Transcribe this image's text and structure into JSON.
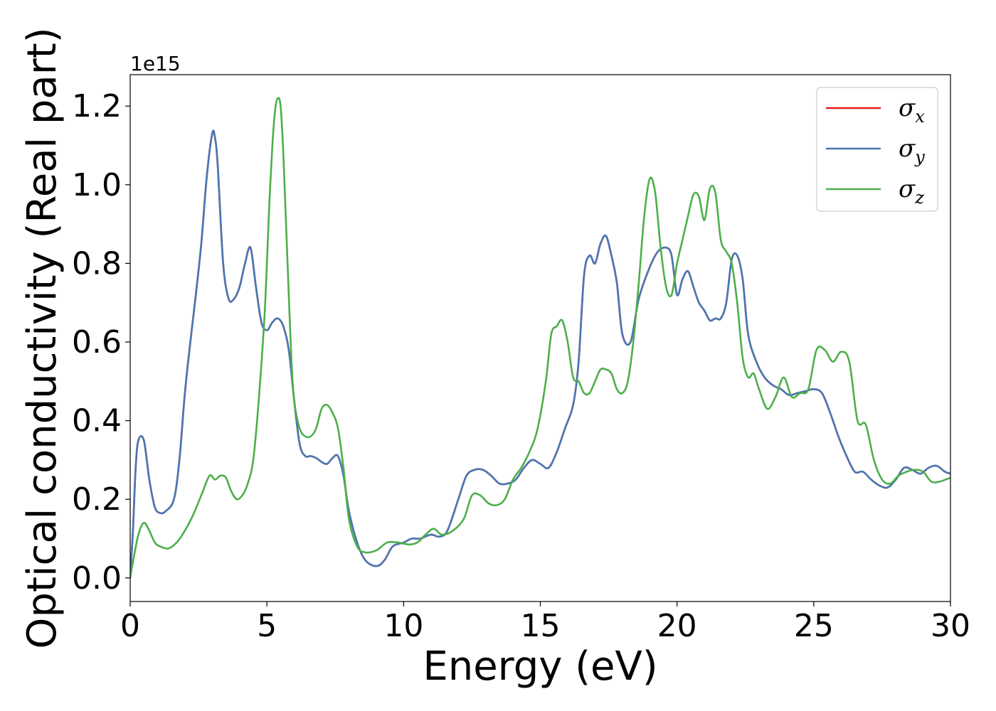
{
  "chart_data": {
    "type": "line",
    "title": "",
    "xlabel": "Energy (eV)",
    "ylabel": "Optical conductivity (Real part)",
    "y_offset_label": "1e15",
    "xlim": [
      0,
      30
    ],
    "ylim": [
      -0.06,
      1.28
    ],
    "y_scale_factor": 1000000000000000.0,
    "x_ticks": [
      0,
      5,
      10,
      15,
      20,
      25,
      30
    ],
    "x_tick_labels": [
      "0",
      "5",
      "10",
      "15",
      "20",
      "25",
      "30"
    ],
    "y_ticks": [
      0.0,
      0.2,
      0.4,
      0.6,
      0.8,
      1.0,
      1.2
    ],
    "y_tick_labels": [
      "0.0",
      "0.2",
      "0.4",
      "0.6",
      "0.8",
      "1.0",
      "1.2"
    ],
    "grid": false,
    "legend_position": "top-right",
    "series": [
      {
        "name": "σx",
        "legend_symbol": "σ",
        "legend_subscript": "x",
        "color": "#e41a1c",
        "x": [
          0,
          0.1,
          0.2,
          0.3,
          0.5,
          0.7,
          0.9,
          1.1,
          1.3,
          1.6,
          1.8,
          2.0,
          2.2,
          2.4,
          2.6,
          2.8,
          3.0,
          3.1,
          3.2,
          3.4,
          3.6,
          3.8,
          4.0,
          4.2,
          4.4,
          4.6,
          4.8,
          5.0,
          5.2,
          5.4,
          5.6,
          5.8,
          6.0,
          6.2,
          6.4,
          6.6,
          6.8,
          7.0,
          7.2,
          7.4,
          7.6,
          7.8,
          8.0,
          8.3,
          8.6,
          9.0,
          9.3,
          9.6,
          10.0,
          10.3,
          10.6,
          11.0,
          11.3,
          11.6,
          12.0,
          12.3,
          12.6,
          12.9,
          13.2,
          13.5,
          13.8,
          14.1,
          14.4,
          14.7,
          15.0,
          15.3,
          15.6,
          15.9,
          16.2,
          16.4,
          16.6,
          16.8,
          17.0,
          17.2,
          17.4,
          17.6,
          17.8,
          18.0,
          18.3,
          18.6,
          19.0,
          19.3,
          19.6,
          19.8,
          20.0,
          20.2,
          20.4,
          20.6,
          20.8,
          21.0,
          21.2,
          21.4,
          21.6,
          21.8,
          22.0,
          22.2,
          22.4,
          22.6,
          22.9,
          23.2,
          23.5,
          23.8,
          24.1,
          24.4,
          24.7,
          25.0,
          25.3,
          25.6,
          25.9,
          26.2,
          26.5,
          26.8,
          27.1,
          27.4,
          27.7,
          28.0,
          28.3,
          28.6,
          28.9,
          29.2,
          29.5,
          29.8,
          30.0
        ],
        "y": [
          0.0,
          0.12,
          0.28,
          0.35,
          0.35,
          0.25,
          0.18,
          0.165,
          0.17,
          0.2,
          0.3,
          0.47,
          0.6,
          0.72,
          0.85,
          1.02,
          1.13,
          1.12,
          1.05,
          0.8,
          0.71,
          0.71,
          0.74,
          0.8,
          0.84,
          0.74,
          0.65,
          0.63,
          0.65,
          0.66,
          0.64,
          0.58,
          0.45,
          0.34,
          0.31,
          0.31,
          0.305,
          0.295,
          0.29,
          0.305,
          0.31,
          0.26,
          0.17,
          0.09,
          0.045,
          0.03,
          0.045,
          0.08,
          0.09,
          0.1,
          0.1,
          0.11,
          0.105,
          0.12,
          0.2,
          0.26,
          0.275,
          0.275,
          0.26,
          0.24,
          0.24,
          0.25,
          0.28,
          0.3,
          0.29,
          0.28,
          0.32,
          0.38,
          0.44,
          0.55,
          0.77,
          0.82,
          0.8,
          0.85,
          0.87,
          0.82,
          0.75,
          0.62,
          0.6,
          0.71,
          0.79,
          0.83,
          0.84,
          0.82,
          0.72,
          0.76,
          0.78,
          0.74,
          0.7,
          0.68,
          0.655,
          0.66,
          0.66,
          0.7,
          0.81,
          0.82,
          0.76,
          0.62,
          0.55,
          0.51,
          0.49,
          0.48,
          0.465,
          0.47,
          0.475,
          0.48,
          0.47,
          0.42,
          0.36,
          0.31,
          0.27,
          0.27,
          0.25,
          0.235,
          0.23,
          0.25,
          0.28,
          0.275,
          0.265,
          0.28,
          0.285,
          0.27,
          0.265
        ]
      },
      {
        "name": "σy",
        "legend_symbol": "σ",
        "legend_subscript": "y",
        "color": "#4878b4",
        "x": [
          0,
          0.1,
          0.2,
          0.3,
          0.5,
          0.7,
          0.9,
          1.1,
          1.3,
          1.6,
          1.8,
          2.0,
          2.2,
          2.4,
          2.6,
          2.8,
          3.0,
          3.1,
          3.2,
          3.4,
          3.6,
          3.8,
          4.0,
          4.2,
          4.4,
          4.6,
          4.8,
          5.0,
          5.2,
          5.4,
          5.6,
          5.8,
          6.0,
          6.2,
          6.4,
          6.6,
          6.8,
          7.0,
          7.2,
          7.4,
          7.6,
          7.8,
          8.0,
          8.3,
          8.6,
          9.0,
          9.3,
          9.6,
          10.0,
          10.3,
          10.6,
          11.0,
          11.3,
          11.6,
          12.0,
          12.3,
          12.6,
          12.9,
          13.2,
          13.5,
          13.8,
          14.1,
          14.4,
          14.7,
          15.0,
          15.3,
          15.6,
          15.9,
          16.2,
          16.4,
          16.6,
          16.8,
          17.0,
          17.2,
          17.4,
          17.6,
          17.8,
          18.0,
          18.3,
          18.6,
          19.0,
          19.3,
          19.6,
          19.8,
          20.0,
          20.2,
          20.4,
          20.6,
          20.8,
          21.0,
          21.2,
          21.4,
          21.6,
          21.8,
          22.0,
          22.2,
          22.4,
          22.6,
          22.9,
          23.2,
          23.5,
          23.8,
          24.1,
          24.4,
          24.7,
          25.0,
          25.3,
          25.6,
          25.9,
          26.2,
          26.5,
          26.8,
          27.1,
          27.4,
          27.7,
          28.0,
          28.3,
          28.6,
          28.9,
          29.2,
          29.5,
          29.8,
          30.0
        ],
        "y": [
          0.0,
          0.12,
          0.28,
          0.35,
          0.35,
          0.25,
          0.18,
          0.165,
          0.17,
          0.2,
          0.3,
          0.47,
          0.6,
          0.72,
          0.85,
          1.02,
          1.13,
          1.12,
          1.05,
          0.8,
          0.71,
          0.71,
          0.74,
          0.8,
          0.84,
          0.74,
          0.65,
          0.63,
          0.65,
          0.66,
          0.64,
          0.58,
          0.45,
          0.34,
          0.31,
          0.31,
          0.305,
          0.295,
          0.29,
          0.305,
          0.31,
          0.26,
          0.17,
          0.09,
          0.045,
          0.03,
          0.045,
          0.08,
          0.09,
          0.1,
          0.1,
          0.11,
          0.105,
          0.12,
          0.2,
          0.26,
          0.275,
          0.275,
          0.26,
          0.24,
          0.24,
          0.25,
          0.28,
          0.3,
          0.29,
          0.28,
          0.32,
          0.38,
          0.44,
          0.55,
          0.77,
          0.82,
          0.8,
          0.85,
          0.87,
          0.82,
          0.75,
          0.62,
          0.6,
          0.71,
          0.79,
          0.83,
          0.84,
          0.82,
          0.72,
          0.76,
          0.78,
          0.74,
          0.7,
          0.68,
          0.655,
          0.66,
          0.66,
          0.7,
          0.81,
          0.82,
          0.76,
          0.62,
          0.55,
          0.51,
          0.49,
          0.48,
          0.465,
          0.47,
          0.475,
          0.48,
          0.47,
          0.42,
          0.36,
          0.31,
          0.27,
          0.27,
          0.25,
          0.235,
          0.23,
          0.25,
          0.28,
          0.275,
          0.265,
          0.28,
          0.285,
          0.27,
          0.265
        ]
      },
      {
        "name": "σz",
        "legend_symbol": "σ",
        "legend_subscript": "z",
        "color": "#4daf4a",
        "x": [
          0,
          0.1,
          0.3,
          0.5,
          0.7,
          0.9,
          1.1,
          1.4,
          1.7,
          2.0,
          2.3,
          2.6,
          2.9,
          3.1,
          3.3,
          3.5,
          3.7,
          3.9,
          4.1,
          4.3,
          4.5,
          4.7,
          4.9,
          5.0,
          5.1,
          5.2,
          5.3,
          5.4,
          5.5,
          5.6,
          5.7,
          5.8,
          5.9,
          6.0,
          6.2,
          6.4,
          6.6,
          6.8,
          7.0,
          7.2,
          7.4,
          7.6,
          7.8,
          8.0,
          8.3,
          8.6,
          9.0,
          9.4,
          9.8,
          10.2,
          10.5,
          10.8,
          11.1,
          11.4,
          11.8,
          12.2,
          12.5,
          12.8,
          13.1,
          13.4,
          13.7,
          14.0,
          14.3,
          14.6,
          14.9,
          15.2,
          15.4,
          15.6,
          15.8,
          16.0,
          16.2,
          16.4,
          16.6,
          16.8,
          17.0,
          17.2,
          17.4,
          17.6,
          17.8,
          18.0,
          18.2,
          18.4,
          18.6,
          18.8,
          19.0,
          19.2,
          19.4,
          19.6,
          19.8,
          20.0,
          20.2,
          20.4,
          20.6,
          20.8,
          21.0,
          21.2,
          21.4,
          21.6,
          21.8,
          22.0,
          22.2,
          22.4,
          22.6,
          22.8,
          23.0,
          23.3,
          23.6,
          23.9,
          24.2,
          24.5,
          24.8,
          25.1,
          25.4,
          25.7,
          26.0,
          26.3,
          26.6,
          26.9,
          27.2,
          27.5,
          27.8,
          28.1,
          28.4,
          28.7,
          29.0,
          29.3,
          29.6,
          30.0
        ],
        "y": [
          0.0,
          0.04,
          0.11,
          0.14,
          0.12,
          0.09,
          0.08,
          0.075,
          0.09,
          0.12,
          0.16,
          0.21,
          0.26,
          0.25,
          0.26,
          0.255,
          0.22,
          0.2,
          0.21,
          0.24,
          0.3,
          0.45,
          0.65,
          0.8,
          0.97,
          1.1,
          1.19,
          1.22,
          1.2,
          1.08,
          0.9,
          0.72,
          0.55,
          0.45,
          0.38,
          0.36,
          0.36,
          0.38,
          0.43,
          0.44,
          0.42,
          0.38,
          0.28,
          0.15,
          0.08,
          0.065,
          0.07,
          0.09,
          0.09,
          0.085,
          0.09,
          0.11,
          0.125,
          0.11,
          0.12,
          0.15,
          0.21,
          0.21,
          0.19,
          0.185,
          0.2,
          0.25,
          0.28,
          0.32,
          0.38,
          0.5,
          0.62,
          0.64,
          0.655,
          0.6,
          0.51,
          0.5,
          0.47,
          0.47,
          0.5,
          0.53,
          0.53,
          0.52,
          0.48,
          0.47,
          0.5,
          0.6,
          0.75,
          0.92,
          1.015,
          0.98,
          0.84,
          0.74,
          0.72,
          0.8,
          0.86,
          0.92,
          0.975,
          0.97,
          0.91,
          0.99,
          0.98,
          0.86,
          0.83,
          0.8,
          0.7,
          0.56,
          0.51,
          0.52,
          0.48,
          0.43,
          0.46,
          0.51,
          0.46,
          0.47,
          0.48,
          0.58,
          0.58,
          0.55,
          0.575,
          0.55,
          0.4,
          0.39,
          0.3,
          0.25,
          0.24,
          0.26,
          0.27,
          0.275,
          0.27,
          0.245,
          0.245,
          0.255
        ]
      }
    ]
  }
}
